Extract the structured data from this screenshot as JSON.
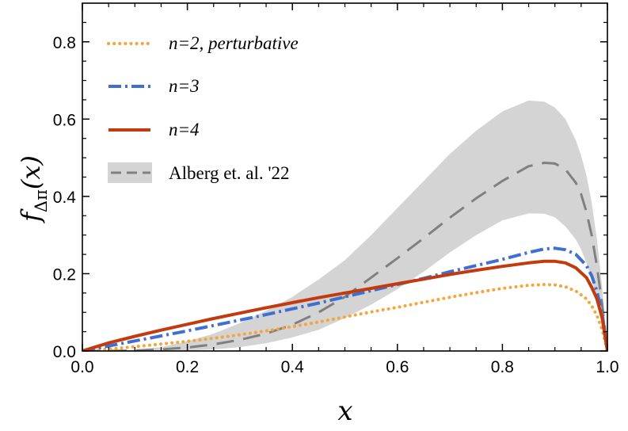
{
  "chart_data": {
    "type": "line",
    "xlabel": "x",
    "ylabel": "f",
    "ylabel_subscript": "Δπ",
    "ylabel_arg": "(x)",
    "xlim": [
      0.0,
      1.0
    ],
    "ylim": [
      0.0,
      0.9
    ],
    "xticks": [
      "0.0",
      "0.2",
      "0.4",
      "0.6",
      "0.8",
      "1.0"
    ],
    "yticks": [
      "0.0",
      "0.2",
      "0.4",
      "0.6",
      "0.8"
    ],
    "grid": false,
    "legend_position": "top-left",
    "series": [
      {
        "name": "n=2, perturbative",
        "style": "dotted",
        "color": "#f5a53a",
        "x": [
          0,
          0.05,
          0.1,
          0.15,
          0.2,
          0.25,
          0.3,
          0.35,
          0.4,
          0.45,
          0.5,
          0.55,
          0.6,
          0.65,
          0.7,
          0.75,
          0.8,
          0.85,
          0.88,
          0.9,
          0.92,
          0.94,
          0.96,
          0.97,
          0.98,
          0.99,
          1.0
        ],
        "y": [
          0,
          0.005,
          0.011,
          0.018,
          0.025,
          0.033,
          0.042,
          0.052,
          0.063,
          0.075,
          0.088,
          0.101,
          0.113,
          0.126,
          0.139,
          0.151,
          0.162,
          0.17,
          0.172,
          0.171,
          0.166,
          0.155,
          0.135,
          0.117,
          0.092,
          0.055,
          0
        ]
      },
      {
        "name": "n=3",
        "style": "dashdot",
        "color": "#3f6fd1",
        "x": [
          0,
          0.05,
          0.1,
          0.15,
          0.2,
          0.25,
          0.3,
          0.35,
          0.4,
          0.45,
          0.5,
          0.55,
          0.6,
          0.65,
          0.7,
          0.75,
          0.8,
          0.85,
          0.88,
          0.9,
          0.92,
          0.94,
          0.96,
          0.97,
          0.98,
          0.99,
          1.0
        ],
        "y": [
          0,
          0.013,
          0.026,
          0.039,
          0.052,
          0.066,
          0.08,
          0.094,
          0.109,
          0.124,
          0.14,
          0.156,
          0.172,
          0.188,
          0.205,
          0.221,
          0.237,
          0.255,
          0.264,
          0.266,
          0.262,
          0.25,
          0.221,
          0.195,
          0.155,
          0.095,
          0
        ]
      },
      {
        "name": "n=4",
        "style": "solid",
        "color": "#c43a0f",
        "x": [
          0,
          0.05,
          0.1,
          0.15,
          0.2,
          0.25,
          0.3,
          0.35,
          0.4,
          0.45,
          0.5,
          0.55,
          0.6,
          0.65,
          0.7,
          0.75,
          0.8,
          0.85,
          0.88,
          0.9,
          0.92,
          0.94,
          0.96,
          0.97,
          0.98,
          0.99,
          1.0
        ],
        "y": [
          0,
          0.021,
          0.038,
          0.054,
          0.069,
          0.084,
          0.098,
          0.112,
          0.125,
          0.138,
          0.15,
          0.162,
          0.174,
          0.186,
          0.198,
          0.209,
          0.219,
          0.228,
          0.232,
          0.232,
          0.228,
          0.215,
          0.19,
          0.165,
          0.135,
          0.085,
          0
        ]
      },
      {
        "name": "Alberg et. al. '22",
        "style": "dashed",
        "color": "#808080",
        "band_color": "#d4d4d4",
        "x": [
          0,
          0.05,
          0.1,
          0.15,
          0.2,
          0.25,
          0.3,
          0.35,
          0.4,
          0.45,
          0.5,
          0.55,
          0.6,
          0.65,
          0.7,
          0.75,
          0.8,
          0.85,
          0.88,
          0.9,
          0.92,
          0.94,
          0.95,
          0.96,
          0.97,
          0.98,
          0.99,
          1.0
        ],
        "y": [
          0,
          0.0,
          0.001,
          0.004,
          0.009,
          0.017,
          0.029,
          0.045,
          0.068,
          0.1,
          0.14,
          0.19,
          0.24,
          0.292,
          0.345,
          0.395,
          0.44,
          0.478,
          0.487,
          0.485,
          0.47,
          0.435,
          0.405,
          0.36,
          0.3,
          0.22,
          0.12,
          0
        ],
        "band_lower": [
          0,
          0.0,
          0.0,
          0.0,
          0.001,
          0.004,
          0.01,
          0.02,
          0.035,
          0.055,
          0.085,
          0.12,
          0.16,
          0.205,
          0.255,
          0.3,
          0.338,
          0.356,
          0.355,
          0.346,
          0.322,
          0.288,
          0.262,
          0.228,
          0.185,
          0.135,
          0.07,
          0
        ],
        "band_upper": [
          0,
          0.001,
          0.003,
          0.01,
          0.025,
          0.045,
          0.072,
          0.104,
          0.14,
          0.185,
          0.235,
          0.3,
          0.37,
          0.44,
          0.51,
          0.57,
          0.62,
          0.648,
          0.645,
          0.63,
          0.6,
          0.545,
          0.505,
          0.455,
          0.385,
          0.29,
          0.165,
          0
        ]
      }
    ]
  }
}
